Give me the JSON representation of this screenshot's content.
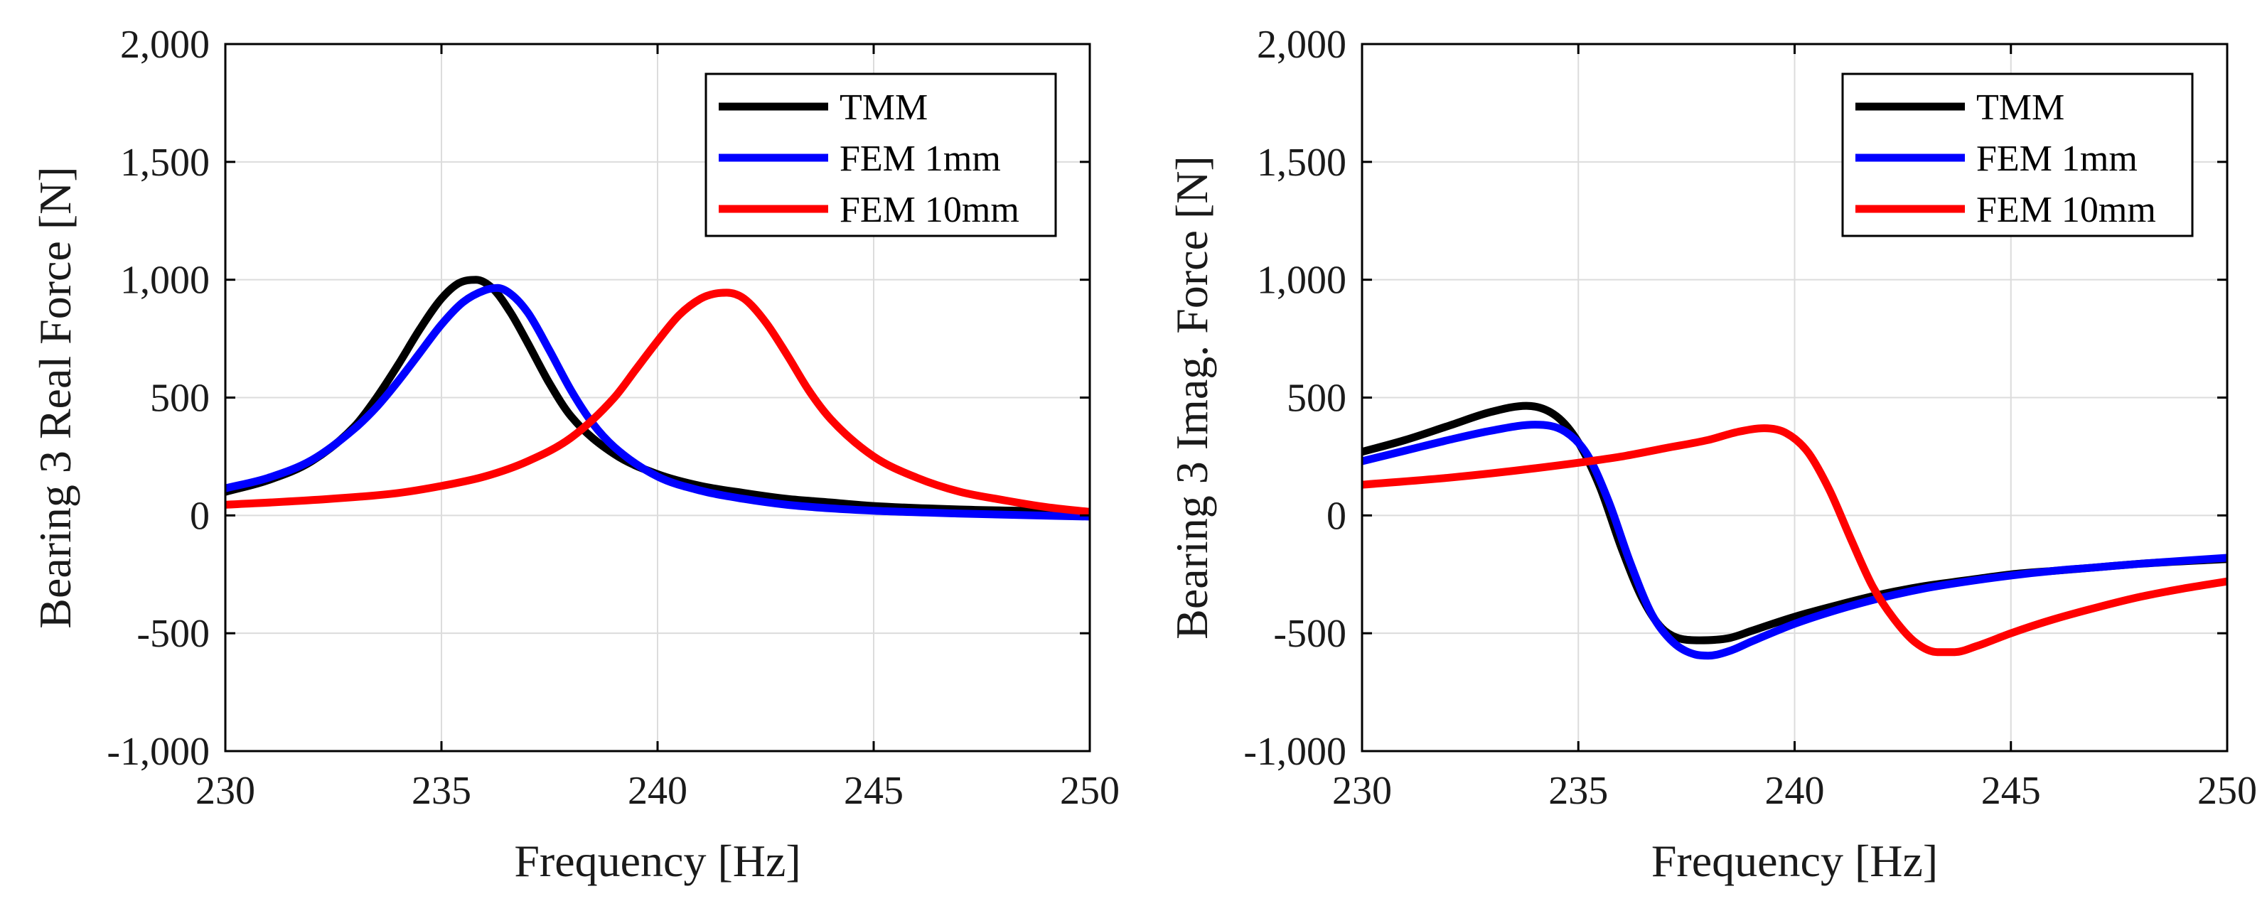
{
  "chart_data": [
    {
      "type": "line",
      "title": "",
      "xlabel": "Frequency [Hz]",
      "ylabel": "Bearing 3 Real Force [N]",
      "xlim": [
        230,
        250
      ],
      "ylim": [
        -1000,
        2000
      ],
      "xticks": [
        230,
        235,
        240,
        245,
        250
      ],
      "yticks": [
        -1000,
        -500,
        0,
        500,
        1000,
        1500,
        2000
      ],
      "xtick_labels": [
        "230",
        "235",
        "240",
        "245",
        "250"
      ],
      "ytick_labels": [
        "-1,000",
        "-500",
        "0",
        "500",
        "1,000",
        "1,500",
        "2,000"
      ],
      "grid": true,
      "legend_position": "top-right",
      "series": [
        {
          "name": "TMM",
          "color": "#000000",
          "x": [
            230,
            231,
            232,
            233,
            233.5,
            234,
            234.5,
            235,
            235.4,
            235.8,
            236.2,
            236.6,
            237,
            237.5,
            238,
            239,
            240,
            241,
            242,
            243,
            244,
            245,
            247,
            250
          ],
          "y": [
            100,
            150,
            230,
            380,
            500,
            640,
            790,
            920,
            985,
            1000,
            960,
            860,
            730,
            560,
            420,
            260,
            175,
            125,
            95,
            70,
            55,
            40,
            25,
            15
          ]
        },
        {
          "name": "FEM 1mm",
          "color": "#0000ff",
          "x": [
            230,
            231,
            232,
            233,
            233.5,
            234,
            234.5,
            235,
            235.5,
            236,
            236.3,
            236.6,
            237,
            237.5,
            238,
            238.5,
            239,
            240,
            241,
            242,
            243,
            244,
            245,
            247,
            250
          ],
          "y": [
            115,
            160,
            235,
            370,
            460,
            570,
            690,
            810,
            905,
            955,
            965,
            940,
            860,
            700,
            530,
            390,
            290,
            165,
            105,
            70,
            45,
            30,
            20,
            8,
            -5
          ]
        },
        {
          "name": "FEM 10mm",
          "color": "#ff0000",
          "x": [
            230,
            232,
            234,
            235,
            236,
            237,
            238,
            239,
            239.5,
            240,
            240.5,
            241,
            241.3,
            241.6,
            242,
            242.5,
            243,
            243.5,
            244,
            245,
            246,
            247,
            248,
            249,
            250
          ],
          "y": [
            45,
            65,
            95,
            125,
            165,
            230,
            330,
            500,
            620,
            740,
            850,
            920,
            940,
            945,
            920,
            820,
            680,
            530,
            410,
            250,
            160,
            100,
            65,
            35,
            15
          ]
        }
      ]
    },
    {
      "type": "line",
      "title": "",
      "xlabel": "Frequency [Hz]",
      "ylabel": "Bearing 3 Imag. Force [N]",
      "xlim": [
        230,
        250
      ],
      "ylim": [
        -1000,
        2000
      ],
      "xticks": [
        230,
        235,
        240,
        245,
        250
      ],
      "yticks": [
        -1000,
        -500,
        0,
        500,
        1000,
        1500,
        2000
      ],
      "xtick_labels": [
        "230",
        "235",
        "240",
        "245",
        "250"
      ],
      "ytick_labels": [
        "-1,000",
        "-500",
        "0",
        "500",
        "1,000",
        "1,500",
        "2,000"
      ],
      "grid": true,
      "legend_position": "top-right",
      "series": [
        {
          "name": "TMM",
          "color": "#000000",
          "x": [
            230,
            231,
            232,
            233,
            233.8,
            234.5,
            235,
            235.5,
            236,
            236.5,
            237,
            237.8,
            238.5,
            239,
            240,
            241,
            242,
            243,
            244,
            245,
            246,
            247,
            248,
            250
          ],
          "y": [
            270,
            320,
            380,
            440,
            465,
            420,
            310,
            120,
            -140,
            -360,
            -490,
            -530,
            -520,
            -490,
            -430,
            -380,
            -335,
            -300,
            -275,
            -250,
            -235,
            -220,
            -205,
            -185
          ]
        },
        {
          "name": "FEM 1mm",
          "color": "#0000ff",
          "x": [
            230,
            231,
            232,
            233,
            234,
            234.7,
            235.2,
            235.7,
            236.2,
            236.7,
            237.2,
            237.7,
            238,
            238.5,
            239,
            240,
            241,
            242,
            243,
            244,
            245,
            246,
            247,
            248,
            250
          ],
          "y": [
            230,
            275,
            320,
            360,
            385,
            355,
            260,
            60,
            -200,
            -420,
            -540,
            -590,
            -595,
            -575,
            -535,
            -460,
            -400,
            -350,
            -310,
            -280,
            -255,
            -235,
            -220,
            -205,
            -180
          ]
        },
        {
          "name": "FEM 10mm",
          "color": "#ff0000",
          "x": [
            230,
            232,
            234,
            236,
            237,
            238,
            238.7,
            239.3,
            239.8,
            240.3,
            240.8,
            241.3,
            241.8,
            242.3,
            242.8,
            243.3,
            243.7,
            244.2,
            245,
            246,
            247,
            248,
            249,
            250
          ],
          "y": [
            130,
            160,
            200,
            250,
            285,
            320,
            355,
            370,
            350,
            270,
            110,
            -100,
            -300,
            -440,
            -540,
            -580,
            -580,
            -555,
            -500,
            -440,
            -390,
            -345,
            -310,
            -280
          ]
        }
      ]
    }
  ]
}
